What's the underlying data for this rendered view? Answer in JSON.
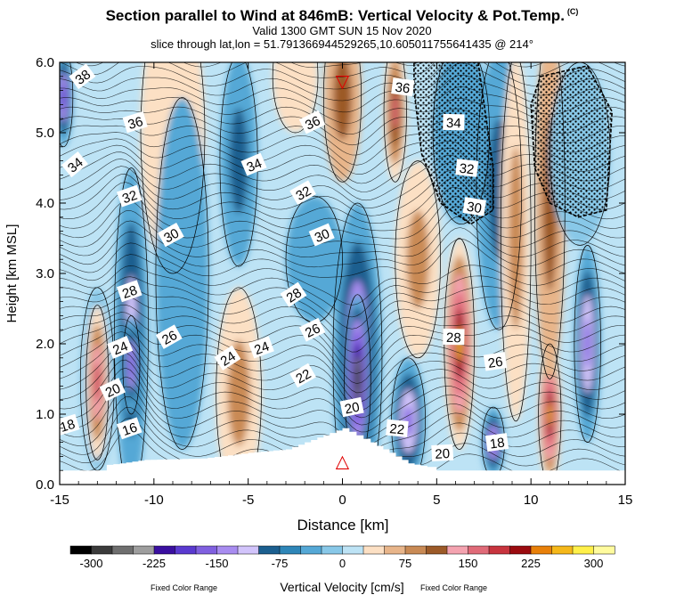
{
  "title": "Section parallel to Wind at 846mB: Vertical Velocity & Pot.Temp.",
  "copyright": "(C)",
  "valid_line": "Valid 1300 GMT SUN 15 Nov 2020",
  "slice_line": "slice through lat,lon = 51.791366944529265,10.605011755641435 @ 214°",
  "chart_data": {
    "type": "heatmap",
    "xlabel": "Distance [km]",
    "ylabel": "Height [km MSL]",
    "xlim": [
      -15,
      15
    ],
    "ylim": [
      0,
      6
    ],
    "x_ticks": [
      "-15",
      "-10",
      "-5",
      "0",
      "5",
      "10",
      "15"
    ],
    "y_ticks": [
      "0.0",
      "1.0",
      "2.0",
      "3.0",
      "4.0",
      "5.0",
      "6.0"
    ],
    "colorbar": {
      "label": "Vertical Velocity [cm/s]",
      "range": [
        -325,
        325
      ],
      "step": 25,
      "tick_labels": [
        "-300",
        "-225",
        "-150",
        "-75",
        "0",
        "75",
        "150",
        "225",
        "300"
      ],
      "left_note": "Fixed Color Range",
      "right_note": "Fixed Color Range",
      "colors": [
        "#000000",
        "#3b3b3b",
        "#6f6f6f",
        "#9e9e9e",
        "#3a0fa0",
        "#5a3ad0",
        "#8060e0",
        "#a88cf0",
        "#d2c4fb",
        "#1b5f8f",
        "#2e86b8",
        "#55a8d6",
        "#88c8e8",
        "#bde3f5",
        "#fce0c4",
        "#e8b58a",
        "#c98a55",
        "#9c5a28",
        "#f4a3b0",
        "#e06a78",
        "#c8343e",
        "#9b0b10",
        "#e8800a",
        "#f5b81a",
        "#fff04a",
        "#fffb9e"
      ]
    },
    "annotations": {
      "wind_marker_top": {
        "symbol": "▽",
        "x": 0,
        "y": 5.75
      },
      "wind_marker_bottom": {
        "symbol": "△",
        "x": 0,
        "y": 0.35
      }
    },
    "theta_labels": [
      {
        "text": "38",
        "x": -13.8,
        "y": 5.8
      },
      {
        "text": "36",
        "x": -11.0,
        "y": 5.15
      },
      {
        "text": "34",
        "x": -14.2,
        "y": 4.55
      },
      {
        "text": "32",
        "x": -11.3,
        "y": 4.1
      },
      {
        "text": "30",
        "x": -9.1,
        "y": 3.55
      },
      {
        "text": "28",
        "x": -11.3,
        "y": 2.75
      },
      {
        "text": "26",
        "x": -9.2,
        "y": 2.1
      },
      {
        "text": "24",
        "x": -11.8,
        "y": 1.95
      },
      {
        "text": "20",
        "x": -12.2,
        "y": 1.35
      },
      {
        "text": "18",
        "x": -14.6,
        "y": 0.85
      },
      {
        "text": "16",
        "x": -11.3,
        "y": 0.8
      },
      {
        "text": "24",
        "x": -6.1,
        "y": 1.8
      },
      {
        "text": "24",
        "x": -4.3,
        "y": 1.95
      },
      {
        "text": "34",
        "x": -4.7,
        "y": 4.55
      },
      {
        "text": "36",
        "x": -1.6,
        "y": 5.15
      },
      {
        "text": "32",
        "x": -2.1,
        "y": 4.15
      },
      {
        "text": "30",
        "x": -1.1,
        "y": 3.55
      },
      {
        "text": "28",
        "x": -2.6,
        "y": 2.7
      },
      {
        "text": "26",
        "x": -1.6,
        "y": 2.2
      },
      {
        "text": "22",
        "x": -2.1,
        "y": 1.55
      },
      {
        "text": "20",
        "x": 0.5,
        "y": 1.1
      },
      {
        "text": "22",
        "x": 2.9,
        "y": 0.8
      },
      {
        "text": "20",
        "x": 5.3,
        "y": 0.45
      },
      {
        "text": "36",
        "x": 3.2,
        "y": 5.65
      },
      {
        "text": "34",
        "x": 5.9,
        "y": 5.15
      },
      {
        "text": "32",
        "x": 6.6,
        "y": 4.5
      },
      {
        "text": "30",
        "x": 7.0,
        "y": 3.95
      },
      {
        "text": "28",
        "x": 5.9,
        "y": 2.1
      },
      {
        "text": "26",
        "x": 8.1,
        "y": 1.75
      },
      {
        "text": "18",
        "x": 8.2,
        "y": 0.6
      }
    ],
    "velocity_features": [
      {
        "x": -13.0,
        "y": 1.5,
        "w": 0.7,
        "rx": 0.9,
        "ry": 1.3,
        "v": -5
      },
      {
        "x": -13.0,
        "y": 1.45,
        "rx": 0.6,
        "ry": 1.1,
        "v": 180
      },
      {
        "x": -11.2,
        "y": 2.2,
        "rx": 0.9,
        "ry": 2.3,
        "v": -120
      },
      {
        "x": -11.2,
        "y": 1.7,
        "rx": 0.45,
        "ry": 0.7,
        "v": -170
      },
      {
        "x": -9.0,
        "y": 5.0,
        "rx": 1.7,
        "ry": 2.0,
        "v": 40
      },
      {
        "x": -8.5,
        "y": 3.0,
        "rx": 1.4,
        "ry": 2.5,
        "v": -30
      },
      {
        "x": -5.5,
        "y": 1.3,
        "rx": 1.2,
        "ry": 1.5,
        "v": 80
      },
      {
        "x": -5.5,
        "y": 4.6,
        "rx": 1.0,
        "ry": 1.5,
        "v": -80
      },
      {
        "x": -2.5,
        "y": 5.8,
        "rx": 1.2,
        "ry": 0.8,
        "v": 25
      },
      {
        "x": 0.0,
        "y": 5.5,
        "rx": 1.0,
        "ry": 1.2,
        "v": 110
      },
      {
        "x": -1.5,
        "y": 3.2,
        "rx": 1.5,
        "ry": 0.9,
        "v": -30
      },
      {
        "x": 0.8,
        "y": 1.8,
        "rx": 1.3,
        "ry": 2.2,
        "v": -180
      },
      {
        "x": 0.8,
        "y": 1.5,
        "rx": 0.7,
        "ry": 1.2,
        "v": -300
      },
      {
        "x": 3.5,
        "y": 0.9,
        "rx": 0.9,
        "ry": 0.9,
        "v": -160
      },
      {
        "x": 2.8,
        "y": 5.3,
        "rx": 0.6,
        "ry": 1.0,
        "v": 160
      },
      {
        "x": 4.0,
        "y": 3.2,
        "rx": 1.2,
        "ry": 1.4,
        "v": 90
      },
      {
        "x": 6.2,
        "y": 2.0,
        "rx": 0.8,
        "ry": 1.5,
        "v": 260
      },
      {
        "x": 6.3,
        "y": 5.0,
        "rx": 1.5,
        "ry": 1.3,
        "v": -40
      },
      {
        "x": 8.3,
        "y": 4.2,
        "rx": 1.2,
        "ry": 2.0,
        "v": -90
      },
      {
        "x": 8.0,
        "y": 0.6,
        "rx": 0.6,
        "ry": 0.5,
        "v": -200
      },
      {
        "x": 9.2,
        "y": 3.5,
        "rx": 0.8,
        "ry": 2.6,
        "v": 80
      },
      {
        "x": 11.0,
        "y": 1.0,
        "rx": 0.6,
        "ry": 1.0,
        "v": 250
      },
      {
        "x": 11.0,
        "y": 4.0,
        "rx": 0.8,
        "ry": 2.5,
        "v": 110
      },
      {
        "x": 13.0,
        "y": 2.0,
        "rx": 0.7,
        "ry": 1.4,
        "v": -160
      },
      {
        "x": 12.6,
        "y": 4.7,
        "rx": 1.6,
        "ry": 1.3,
        "v": -20
      },
      {
        "x": -14.8,
        "y": 5.5,
        "rx": 0.5,
        "ry": 0.7,
        "v": -200
      }
    ],
    "stipple_regions": [
      {
        "points": [
          [
            3.8,
            6.0
          ],
          [
            7.2,
            6.0
          ],
          [
            8.0,
            4.5
          ],
          [
            8.0,
            3.9
          ],
          [
            6.8,
            3.7
          ],
          [
            5.2,
            4.0
          ],
          [
            4.2,
            4.7
          ],
          [
            3.8,
            5.6
          ]
        ]
      },
      {
        "points": [
          [
            10.5,
            5.8
          ],
          [
            13.0,
            5.95
          ],
          [
            14.3,
            5.3
          ],
          [
            14.0,
            3.9
          ],
          [
            12.5,
            3.8
          ],
          [
            11.0,
            4.0
          ],
          [
            10.2,
            4.5
          ],
          [
            10.0,
            5.4
          ]
        ]
      }
    ],
    "terrain": [
      [
        -15,
        0.2
      ],
      [
        -12.8,
        0.2
      ],
      [
        -12.5,
        0.28
      ],
      [
        -11.8,
        0.3
      ],
      [
        -10.5,
        0.35
      ],
      [
        -7.5,
        0.37
      ],
      [
        -5.0,
        0.45
      ],
      [
        -3.0,
        0.5
      ],
      [
        -1.0,
        0.7
      ],
      [
        0,
        0.8
      ],
      [
        1.5,
        0.6
      ],
      [
        2.5,
        0.45
      ],
      [
        3.5,
        0.3
      ],
      [
        4.5,
        0.25
      ],
      [
        5.0,
        0.2
      ],
      [
        15,
        0.2
      ]
    ]
  }
}
